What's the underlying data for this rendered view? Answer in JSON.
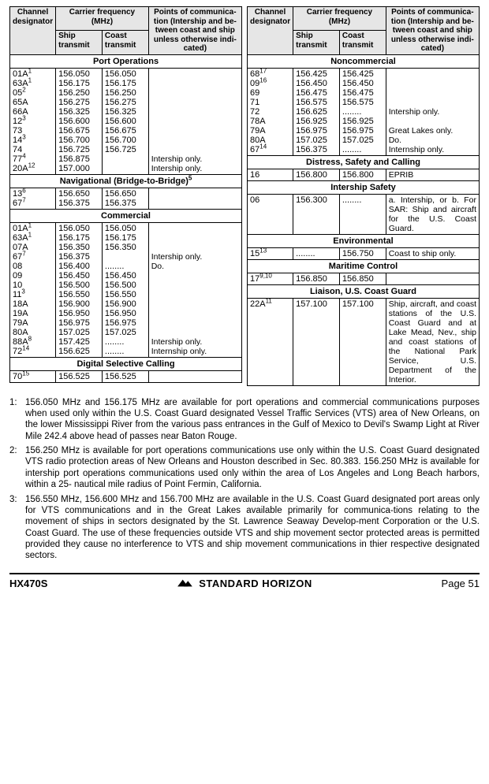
{
  "header": {
    "channel_designator": "Channel designator",
    "carrier_freq": "Carrier frequency (MHz)",
    "ship_transmit": "Ship transmit",
    "coast_transmit": "Coast transmit",
    "points": "Points of communica-tion (Intership and be-tween coast and ship unless otherwise indi-cated)"
  },
  "left": {
    "port_ops_title": "Port Operations",
    "port_ops_rows": [
      {
        "ch": "01A",
        "sup": "1",
        "ship": "156.050",
        "coast": "156.050",
        "note": ""
      },
      {
        "ch": "63A",
        "sup": "1",
        "ship": "156.175",
        "coast": "156.175",
        "note": ""
      },
      {
        "ch": "05",
        "sup": "2",
        "ship": "156.250",
        "coast": "156.250",
        "note": ""
      },
      {
        "ch": "65A",
        "sup": "",
        "ship": "156.275",
        "coast": "156.275",
        "note": ""
      },
      {
        "ch": "66A",
        "sup": "",
        "ship": "156.325",
        "coast": "156.325",
        "note": ""
      },
      {
        "ch": "12",
        "sup": "3",
        "ship": "156.600",
        "coast": "156.600",
        "note": ""
      },
      {
        "ch": "73",
        "sup": "",
        "ship": "156.675",
        "coast": "156.675",
        "note": ""
      },
      {
        "ch": "14",
        "sup": "3",
        "ship": "156.700",
        "coast": "156.700",
        "note": ""
      },
      {
        "ch": "74",
        "sup": "",
        "ship": "156.725",
        "coast": "156.725",
        "note": ""
      },
      {
        "ch": "77",
        "sup": "4",
        "ship": "156.875",
        "coast": "",
        "note": "Intership only."
      },
      {
        "ch": "20A",
        "sup": "12",
        "ship": "157.000",
        "coast": "",
        "note": "Intership only."
      }
    ],
    "nav_title": "Navigational (Bridge-to-Bridge)",
    "nav_sup": "5",
    "nav_rows": [
      {
        "ch": "13",
        "sup": "6",
        "ship": "156.650",
        "coast": "156.650",
        "note": ""
      },
      {
        "ch": "67",
        "sup": "7",
        "ship": "156.375",
        "coast": "156.375",
        "note": ""
      }
    ],
    "comm_title": "Commercial",
    "comm_rows": [
      {
        "ch": "01A",
        "sup": "1",
        "ship": "156.050",
        "coast": "156.050",
        "note": ""
      },
      {
        "ch": "63A",
        "sup": "1",
        "ship": "156.175",
        "coast": "156.175",
        "note": ""
      },
      {
        "ch": "07A",
        "sup": "",
        "ship": "156.350",
        "coast": "156.350",
        "note": ""
      },
      {
        "ch": "67",
        "sup": "7",
        "ship": "156.375",
        "coast": "",
        "note": "Intership only."
      },
      {
        "ch": "08",
        "sup": "",
        "ship": "156.400",
        "coast": "........",
        "note": "Do."
      },
      {
        "ch": "09",
        "sup": "",
        "ship": "156.450",
        "coast": "156.450",
        "note": ""
      },
      {
        "ch": "10",
        "sup": "",
        "ship": "156.500",
        "coast": "156.500",
        "note": ""
      },
      {
        "ch": "11",
        "sup": "3",
        "ship": "156.550",
        "coast": "156.550",
        "note": ""
      },
      {
        "ch": "18A",
        "sup": "",
        "ship": "156.900",
        "coast": "156.900",
        "note": ""
      },
      {
        "ch": "19A",
        "sup": "",
        "ship": "156.950",
        "coast": "156.950",
        "note": ""
      },
      {
        "ch": "79A",
        "sup": "",
        "ship": "156.975",
        "coast": "156.975",
        "note": ""
      },
      {
        "ch": "80A",
        "sup": "",
        "ship": "157.025",
        "coast": "157.025",
        "note": ""
      },
      {
        "ch": "88A",
        "sup": "8",
        "ship": "157.425",
        "coast": "........",
        "note": "Intership only."
      },
      {
        "ch": "72",
        "sup": "14",
        "ship": "156.625",
        "coast": "........",
        "note": "Internship only."
      }
    ],
    "dsc_title": "Digital Selective Calling",
    "dsc_rows": [
      {
        "ch": "70",
        "sup": "15",
        "ship": "156.525",
        "coast": "156.525",
        "note": ""
      }
    ]
  },
  "right": {
    "noncomm_title": "Noncommercial",
    "noncomm_rows": [
      {
        "ch": "68",
        "sup": "17",
        "ship": "156.425",
        "coast": "156.425",
        "note": ""
      },
      {
        "ch": "09",
        "sup": "16",
        "ship": "156.450",
        "coast": "156.450",
        "note": ""
      },
      {
        "ch": "69",
        "sup": "",
        "ship": "156.475",
        "coast": "156.475",
        "note": ""
      },
      {
        "ch": "71",
        "sup": "",
        "ship": "156.575",
        "coast": "156.575",
        "note": ""
      },
      {
        "ch": "72",
        "sup": "",
        "ship": "156.625",
        "coast": "........",
        "note": "Intership only."
      },
      {
        "ch": "78A",
        "sup": "",
        "ship": "156.925",
        "coast": "156.925",
        "note": ""
      },
      {
        "ch": "79A",
        "sup": "",
        "ship": "156.975",
        "coast": "156.975",
        "note": "Great Lakes only."
      },
      {
        "ch": "80A",
        "sup": "",
        "ship": "157.025",
        "coast": "157.025",
        "note": "Do."
      },
      {
        "ch": "67",
        "sup": "14",
        "ship": "156.375",
        "coast": "........",
        "note": "Internship only."
      }
    ],
    "distress_title": "Distress, Safety and Calling",
    "distress_rows": [
      {
        "ch": "16",
        "sup": "",
        "ship": "156.800",
        "coast": "156.800",
        "note": "EPRIB"
      }
    ],
    "intership_title": "Intership Safety",
    "intership_rows": [
      {
        "ch": "06",
        "sup": "",
        "ship": "156.300",
        "coast": "........",
        "note": "a. Intership, or b. For SAR: Ship and aircraft for the U.S. Coast Guard."
      }
    ],
    "env_title": "Environmental",
    "env_rows": [
      {
        "ch": "15",
        "sup": "13",
        "ship": "........",
        "coast": "156.750",
        "note": "Coast to ship only."
      }
    ],
    "maritime_title": "Maritime Control",
    "maritime_rows": [
      {
        "ch": "17",
        "sup": "9,10",
        "ship": "156.850",
        "coast": "156.850",
        "note": ""
      }
    ],
    "liaison_title": "Liaison, U.S. Coast Guard",
    "liaison_rows": [
      {
        "ch": "22A",
        "sup": "11",
        "ship": "157.100",
        "coast": "157.100",
        "note": "Ship, aircraft, and coast stations of the U.S. Coast Guard and at Lake Mead, Nev., ship and coast stations of the National Park Service, U.S. Department of the Interior."
      }
    ]
  },
  "footnotes": [
    {
      "n": "1:",
      "t": "156.050 MHz and 156.175 MHz are available for port operations and commercial communications purposes when used only within the U.S. Coast Guard designated Vessel Traffic Services (VTS) area of New Orleans, on the lower Mississippi River from the various pass entrances in the Gulf of Mexico to Devil's Swamp Light at River Mile 242.4 above head of passes near Baton Rouge."
    },
    {
      "n": "2:",
      "t": "156.250 MHz is available for port operations communications use only within the U.S. Coast Guard designated  VTS radio protection areas of New Orleans and Houston described in Sec.  80.383. 156.250 MHz is available for intership port operations communications used only within the area of Los Angeles and Long Beach harbors, within a 25- nautical mile radius of Point Fermin, California."
    },
    {
      "n": "3:",
      "t": "156.550 MHz, 156.600 MHz and 156.700 MHz are available in the U.S. Coast Guard designated port areas only for VTS communications and in the Great Lakes available primarily for communica-tions relating to the movement of ships in sectors designated by the St. Lawrence Seaway Develop-ment Corporation or the U.S. Coast Guard. The use of these frequencies outside VTS and ship movement sector protected areas is permitted provided they cause no interference to VTS and ship movement communications in thier respective designated sectors."
    }
  ],
  "footer": {
    "model": "HX470S",
    "brand": "STANDARD HORIZON",
    "page": "Page 51"
  }
}
